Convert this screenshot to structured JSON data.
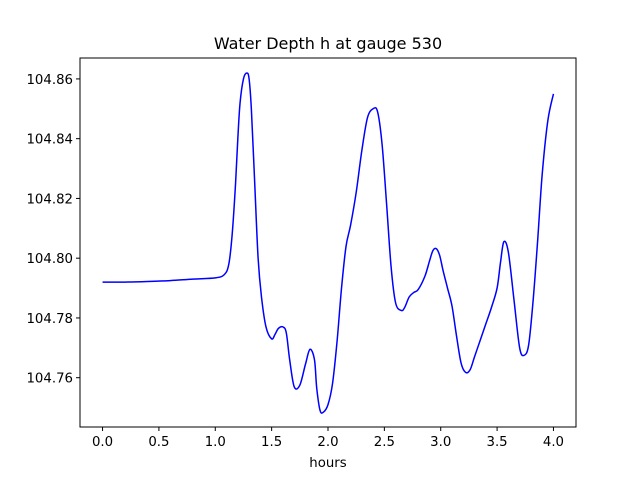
{
  "chart_data": {
    "type": "line",
    "title": "Water Depth h at gauge 530",
    "xlabel": "hours",
    "ylabel": "",
    "xlim": [
      -0.2,
      4.2
    ],
    "ylim": [
      104.7435,
      104.867
    ],
    "grid": false,
    "legend": "none",
    "x_ticks": [
      0.0,
      0.5,
      1.0,
      1.5,
      2.0,
      2.5,
      3.0,
      3.5,
      4.0
    ],
    "x_tick_labels": [
      "0.0",
      "0.5",
      "1.0",
      "1.5",
      "2.0",
      "2.5",
      "3.0",
      "3.5",
      "4.0"
    ],
    "y_ticks": [
      104.76,
      104.78,
      104.8,
      104.82,
      104.84,
      104.86
    ],
    "y_tick_labels": [
      "104.76",
      "104.78",
      "104.80",
      "104.82",
      "104.84",
      "104.86"
    ],
    "series": [
      {
        "color": "#0000ff",
        "x": [
          0.0,
          0.2,
          0.4,
          0.6,
          0.8,
          1.0,
          1.08,
          1.12,
          1.15,
          1.18,
          1.2,
          1.22,
          1.25,
          1.28,
          1.3,
          1.32,
          1.35,
          1.38,
          1.41,
          1.45,
          1.5,
          1.53,
          1.56,
          1.6,
          1.63,
          1.66,
          1.7,
          1.75,
          1.8,
          1.84,
          1.88,
          1.9,
          1.93,
          1.96,
          2.0,
          2.04,
          2.08,
          2.12,
          2.16,
          2.2,
          2.25,
          2.3,
          2.35,
          2.4,
          2.44,
          2.48,
          2.52,
          2.56,
          2.6,
          2.65,
          2.68,
          2.72,
          2.76,
          2.8,
          2.86,
          2.9,
          2.93,
          2.96,
          2.99,
          3.02,
          3.06,
          3.1,
          3.14,
          3.18,
          3.22,
          3.26,
          3.3,
          3.35,
          3.4,
          3.45,
          3.5,
          3.53,
          3.56,
          3.6,
          3.65,
          3.7,
          3.74,
          3.78,
          3.82,
          3.86,
          3.9,
          3.95,
          4.0
        ],
        "y": [
          104.792,
          104.792,
          104.7922,
          104.7925,
          104.793,
          104.7934,
          104.7945,
          104.798,
          104.808,
          104.825,
          104.84,
          104.852,
          104.86,
          104.862,
          104.86,
          104.85,
          104.825,
          104.8,
          104.787,
          104.777,
          104.773,
          104.7745,
          104.7765,
          104.777,
          104.775,
          104.766,
          104.757,
          104.7575,
          104.7645,
          104.7695,
          104.766,
          104.7565,
          104.749,
          104.7485,
          104.751,
          104.758,
          104.772,
          104.79,
          104.804,
          104.811,
          104.822,
          104.836,
          104.847,
          104.85,
          104.849,
          104.838,
          104.818,
          104.797,
          104.785,
          104.7825,
          104.7835,
          104.787,
          104.7885,
          104.7895,
          104.794,
          104.799,
          104.8025,
          104.8032,
          104.801,
          104.796,
          104.79,
          104.784,
          104.774,
          104.765,
          104.7618,
          104.7626,
          104.767,
          104.7725,
          104.778,
          104.7835,
          104.79,
          104.7985,
          104.8055,
          104.802,
          104.786,
          104.77,
          104.7675,
          104.771,
          104.786,
          104.806,
          104.828,
          104.846,
          104.855
        ]
      }
    ]
  }
}
